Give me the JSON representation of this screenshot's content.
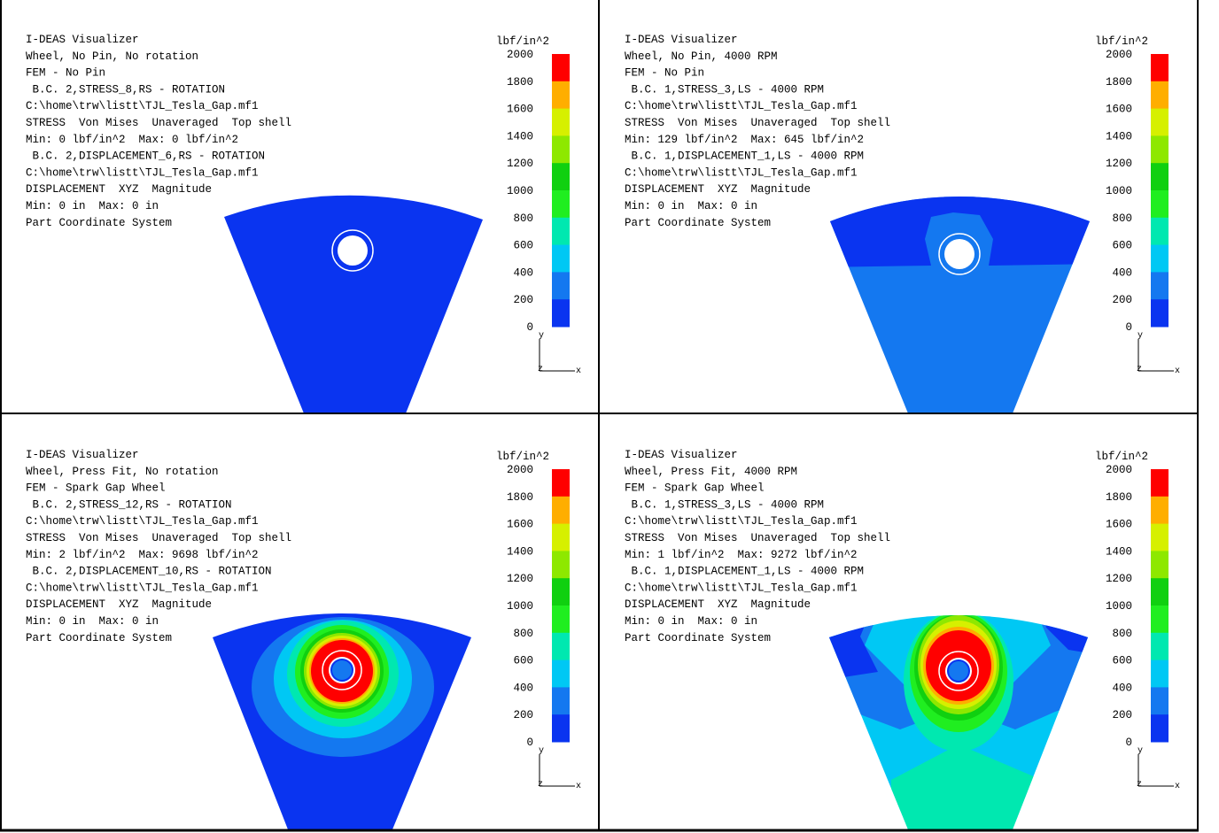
{
  "panels": [
    {
      "lines": [
        "I-DEAS Visualizer",
        "Wheel, No Pin, No rotation",
        "FEM - No Pin",
        " B.C. 2,STRESS_8,RS - ROTATION",
        "C:\\home\\trw\\listt\\TJL_Tesla_Gap.mf1",
        "STRESS  Von Mises  Unaveraged  Top shell",
        "Min: 0 lbf/in^2  Max: 0 lbf/in^2",
        " B.C. 2,DISPLACEMENT_6,RS - ROTATION",
        "C:\\home\\trw\\listt\\TJL_Tesla_Gap.mf1",
        "DISPLACEMENT  XYZ  Magnitude",
        "Min: 0 in  Max: 0 in",
        "Part Coordinate System"
      ],
      "unit": "lbf/in^2"
    },
    {
      "lines": [
        "I-DEAS Visualizer",
        "Wheel, No Pin, 4000 RPM",
        "FEM - No Pin",
        " B.C. 1,STRESS_3,LS - 4000 RPM",
        "C:\\home\\trw\\listt\\TJL_Tesla_Gap.mf1",
        "STRESS  Von Mises  Unaveraged  Top shell",
        "Min: 129 lbf/in^2  Max: 645 lbf/in^2",
        " B.C. 1,DISPLACEMENT_1,LS - 4000 RPM",
        "C:\\home\\trw\\listt\\TJL_Tesla_Gap.mf1",
        "DISPLACEMENT  XYZ  Magnitude",
        "Min: 0 in  Max: 0 in",
        "Part Coordinate System"
      ],
      "unit": "lbf/in^2"
    },
    {
      "lines": [
        "I-DEAS Visualizer",
        "Wheel, Press Fit, No rotation",
        "FEM - Spark Gap Wheel",
        " B.C. 2,STRESS_12,RS - ROTATION",
        "C:\\home\\trw\\listt\\TJL_Tesla_Gap.mf1",
        "STRESS  Von Mises  Unaveraged  Top shell",
        "Min: 2 lbf/in^2  Max: 9698 lbf/in^2",
        " B.C. 2,DISPLACEMENT_10,RS - ROTATION",
        "C:\\home\\trw\\listt\\TJL_Tesla_Gap.mf1",
        "DISPLACEMENT  XYZ  Magnitude",
        "Min: 0 in  Max: 0 in",
        "Part Coordinate System"
      ],
      "unit": "lbf/in^2"
    },
    {
      "lines": [
        "I-DEAS Visualizer",
        "Wheel, Press Fit, 4000 RPM",
        "FEM - Spark Gap Wheel",
        " B.C. 1,STRESS_3,LS - 4000 RPM",
        "C:\\home\\trw\\listt\\TJL_Tesla_Gap.mf1",
        "STRESS  Von Mises  Unaveraged  Top shell",
        "Min: 1 lbf/in^2  Max: 9272 lbf/in^2",
        " B.C. 1,DISPLACEMENT_1,LS - 4000 RPM",
        "C:\\home\\trw\\listt\\TJL_Tesla_Gap.mf1",
        "DISPLACEMENT  XYZ  Magnitude",
        "Min: 0 in  Max: 0 in",
        "Part Coordinate System"
      ],
      "unit": "lbf/in^2"
    }
  ],
  "colorbar": {
    "ticks": [
      2000,
      1800,
      1600,
      1400,
      1200,
      1000,
      800,
      600,
      400,
      200,
      0
    ],
    "colors": [
      "#ff0000",
      "#ffae00",
      "#d6f000",
      "#8ee800",
      "#10d010",
      "#20ee20",
      "#00e8b0",
      "#00c8f4",
      "#1478f0",
      "#0a34f0"
    ]
  },
  "axes": {
    "y": "y",
    "z": "z",
    "x": "x"
  }
}
